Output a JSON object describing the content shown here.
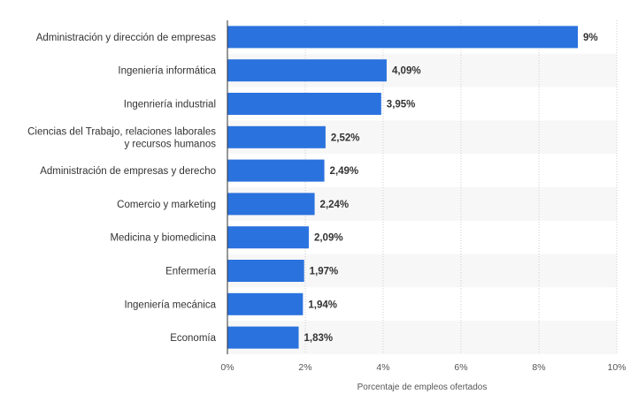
{
  "chart_data": {
    "type": "bar",
    "orientation": "horizontal",
    "categories": [
      "Administración y dirección de empresas",
      "Ingeniería informática",
      "Ingenriería industrial",
      [
        "Ciencias del Trabajo, relaciones laborales",
        "y recursos humanos"
      ],
      "Administración de empresas y derecho",
      "Comercio y marketing",
      "Medicina y biomedicina",
      "Enfermería",
      "Ingeniería mecánica",
      "Economía"
    ],
    "values": [
      9,
      4.09,
      3.95,
      2.52,
      2.49,
      2.24,
      2.09,
      1.97,
      1.94,
      1.83
    ],
    "value_labels": [
      "9%",
      "4,09%",
      "3,95%",
      "2,52%",
      "2,49%",
      "2,24%",
      "2,09%",
      "1,97%",
      "1,94%",
      "1,83%"
    ],
    "xlabel": "Porcentaje de empleos ofertados",
    "xlim": [
      0,
      10
    ],
    "ticks": [
      0,
      2,
      4,
      6,
      8,
      10
    ],
    "tick_labels": [
      "0%",
      "2%",
      "4%",
      "6%",
      "8%",
      "10%"
    ],
    "bar_color": "#2A72DE",
    "grid": true
  }
}
